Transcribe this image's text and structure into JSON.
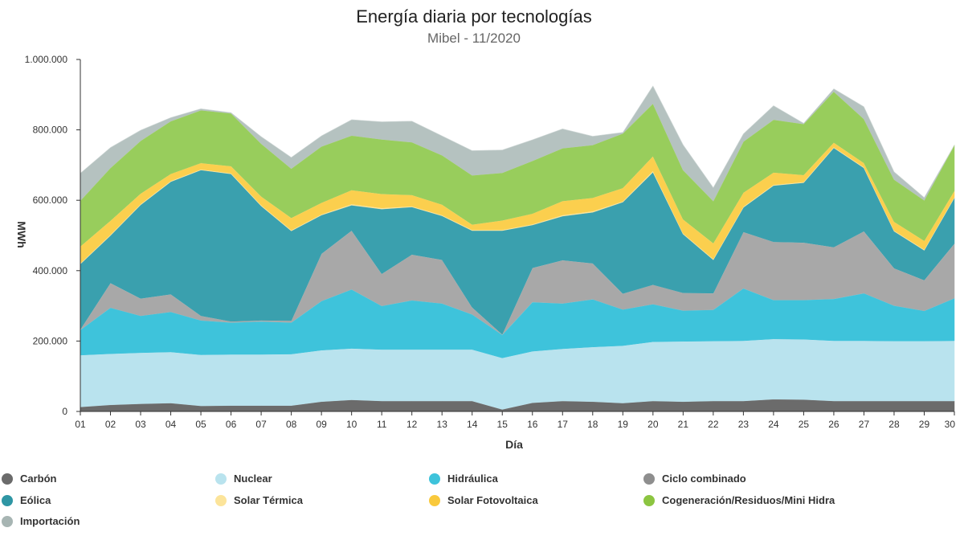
{
  "title": "Energía diaria por tecnologías",
  "subtitle": "Mibel - 11/2020",
  "chart_data": {
    "type": "area",
    "stacked": true,
    "title": "Energía diaria por tecnologías",
    "subtitle": "Mibel - 11/2020",
    "xlabel": "Día",
    "ylabel": "MWh",
    "ylim": [
      0,
      1000000
    ],
    "yticks": [
      "0",
      "200.000",
      "400.000",
      "600.000",
      "800.000",
      "1.000.000"
    ],
    "categories": [
      "01",
      "02",
      "03",
      "04",
      "05",
      "06",
      "07",
      "08",
      "09",
      "10",
      "11",
      "12",
      "13",
      "14",
      "15",
      "16",
      "17",
      "18",
      "19",
      "20",
      "21",
      "22",
      "23",
      "24",
      "25",
      "26",
      "27",
      "28",
      "29",
      "30"
    ],
    "grid": false,
    "legend_position": "bottom",
    "series": [
      {
        "name": "Carbón",
        "color": "#6b6b6b",
        "values": [
          13000,
          19000,
          22000,
          24000,
          16000,
          17000,
          17000,
          17000,
          28000,
          33000,
          30000,
          30000,
          30000,
          30000,
          6000,
          25000,
          30000,
          28000,
          24000,
          30000,
          28000,
          30000,
          30000,
          35000,
          34000,
          30000,
          30000,
          30000,
          30000,
          30000
        ]
      },
      {
        "name": "Nuclear",
        "color": "#b9e3ee",
        "values": [
          147000,
          145000,
          145000,
          145000,
          145000,
          145000,
          145000,
          146000,
          146000,
          146000,
          146000,
          146000,
          146000,
          146000,
          146000,
          146000,
          148000,
          155000,
          163000,
          168000,
          171000,
          170000,
          171000,
          171000,
          171000,
          171000,
          171000,
          170000,
          170000,
          171000
        ]
      },
      {
        "name": "Hidráulica",
        "color": "#3ec3db",
        "values": [
          72000,
          131000,
          105000,
          114000,
          98000,
          91000,
          94000,
          90000,
          140000,
          168000,
          124000,
          140000,
          131000,
          100000,
          66000,
          140000,
          129000,
          136000,
          103000,
          107000,
          88000,
          89000,
          149000,
          111000,
          112000,
          119000,
          135000,
          101000,
          86000,
          121000
        ]
      },
      {
        "name": "Ciclo combinado",
        "color": "#a8a8a8",
        "values": [
          1000,
          70000,
          49000,
          50000,
          13000,
          3000,
          3000,
          5000,
          134000,
          167000,
          91000,
          130000,
          124000,
          20000,
          1000,
          97000,
          123000,
          102000,
          45000,
          55000,
          50000,
          47000,
          160000,
          165000,
          163000,
          147000,
          176000,
          106000,
          87000,
          155000
        ]
      },
      {
        "name": "Eólica",
        "color": "#3aa0ae",
        "values": [
          186000,
          135000,
          266000,
          320000,
          414000,
          419000,
          325000,
          255000,
          110000,
          72000,
          184000,
          135000,
          125000,
          218000,
          295000,
          122000,
          125000,
          145000,
          260000,
          320000,
          167000,
          95000,
          70000,
          160000,
          170000,
          282000,
          180000,
          105000,
          85000,
          130000
        ]
      },
      {
        "name": "Solar Térmica",
        "color": "#fce49a",
        "values": [
          2000,
          2000,
          2000,
          2000,
          2000,
          2000,
          2000,
          2000,
          2000,
          3000,
          3000,
          2000,
          2000,
          2000,
          2000,
          2000,
          3000,
          3000,
          2000,
          3000,
          2000,
          2000,
          2000,
          2000,
          2000,
          2000,
          2000,
          2000,
          2000,
          2000
        ]
      },
      {
        "name": "Solar Fotovoltaica",
        "color": "#fbcf4e",
        "values": [
          48000,
          40000,
          30000,
          20000,
          18000,
          20000,
          25000,
          35000,
          33000,
          40000,
          40000,
          32000,
          30000,
          15000,
          27000,
          30000,
          40000,
          38000,
          38000,
          42000,
          40000,
          45000,
          40000,
          35000,
          20000,
          13000,
          12000,
          25000,
          25000,
          18000
        ]
      },
      {
        "name": "Cogeneración/Residuos/Mini Hidra",
        "color": "#98cd5c",
        "values": [
          130000,
          150000,
          150000,
          150000,
          150000,
          150000,
          150000,
          140000,
          160000,
          155000,
          155000,
          150000,
          140000,
          140000,
          135000,
          150000,
          150000,
          150000,
          155000,
          150000,
          140000,
          120000,
          145000,
          150000,
          145000,
          145000,
          125000,
          120000,
          115000,
          130000
        ]
      },
      {
        "name": "Importación",
        "color": "#b5c2c0",
        "values": [
          78000,
          58000,
          30000,
          10000,
          4000,
          2000,
          20000,
          32000,
          30000,
          45000,
          50000,
          60000,
          55000,
          70000,
          65000,
          60000,
          55000,
          25000,
          3000,
          50000,
          72000,
          38000,
          22000,
          40000,
          2000,
          8000,
          35000,
          22000,
          8000,
          0
        ]
      }
    ]
  },
  "legend": [
    {
      "label": "Carbón",
      "color": "#6b6b6b"
    },
    {
      "label": "Nuclear",
      "color": "#b9e3ee"
    },
    {
      "label": "Hidráulica",
      "color": "#3ec3db"
    },
    {
      "label": "Ciclo combinado",
      "color": "#8e8e8e"
    },
    {
      "label": "Eólica",
      "color": "#2f96a4"
    },
    {
      "label": "Solar Térmica",
      "color": "#fce49a"
    },
    {
      "label": "Solar Fotovoltaica",
      "color": "#f9c93c"
    },
    {
      "label": "Cogeneración/Residuos/Mini Hidra",
      "color": "#8cc541"
    },
    {
      "label": "Importación",
      "color": "#a7b5b3"
    }
  ]
}
